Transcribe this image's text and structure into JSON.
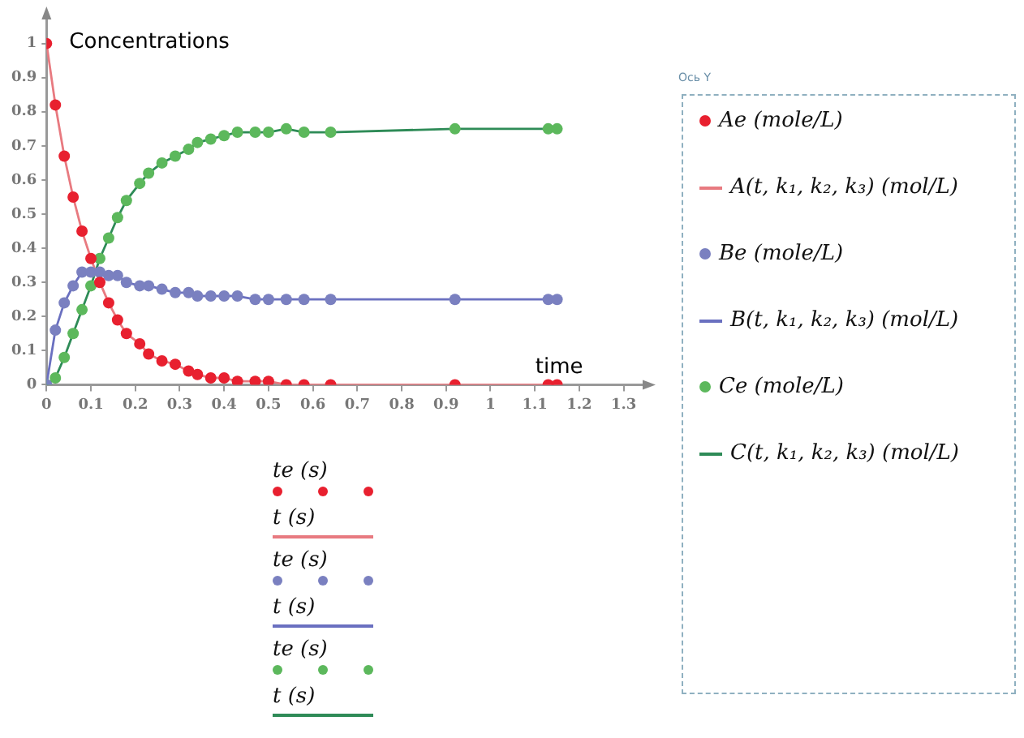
{
  "chart_data": {
    "type": "scatter",
    "ylabel": "Concentrations",
    "xlabel": "time",
    "x": [
      0,
      0.02,
      0.04,
      0.06,
      0.08,
      0.1,
      0.12,
      0.14,
      0.16,
      0.18,
      0.21,
      0.23,
      0.26,
      0.29,
      0.32,
      0.34,
      0.37,
      0.4,
      0.43,
      0.47,
      0.5,
      0.54,
      0.58,
      0.64,
      0.92,
      1.13,
      1.15
    ],
    "series": [
      {
        "name": "Ae (mole/L)",
        "color": "#e8202f",
        "values": [
          1,
          0.82,
          0.67,
          0.55,
          0.45,
          0.37,
          0.3,
          0.24,
          0.19,
          0.15,
          0.12,
          0.09,
          0.07,
          0.06,
          0.04,
          0.03,
          0.02,
          0.02,
          0.01,
          0.01,
          0.01,
          0,
          0,
          0,
          0,
          0,
          0
        ]
      },
      {
        "name": "A(t, k₁, k₂, k₃) (mol/L)",
        "type": "line",
        "color": "#e87a80",
        "values": [
          1,
          0.82,
          0.67,
          0.55,
          0.45,
          0.37,
          0.3,
          0.24,
          0.19,
          0.15,
          0.12,
          0.09,
          0.07,
          0.06,
          0.04,
          0.03,
          0.02,
          0.02,
          0.01,
          0.01,
          0.01,
          0,
          0,
          0,
          0,
          0,
          0
        ]
      },
      {
        "name": "Be (mole/L)",
        "color": "#7a80c0",
        "values": [
          0,
          0.16,
          0.24,
          0.29,
          0.33,
          0.33,
          0.33,
          0.32,
          0.32,
          0.3,
          0.29,
          0.29,
          0.28,
          0.27,
          0.27,
          0.26,
          0.26,
          0.26,
          0.26,
          0.25,
          0.25,
          0.25,
          0.25,
          0.25,
          0.25,
          0.25,
          0.25
        ]
      },
      {
        "name": "B(t, k₁, k₂, k₃) (mol/L)",
        "type": "line",
        "color": "#6a70c0",
        "values": [
          0,
          0.16,
          0.24,
          0.29,
          0.33,
          0.33,
          0.33,
          0.32,
          0.32,
          0.3,
          0.29,
          0.29,
          0.28,
          0.27,
          0.27,
          0.26,
          0.26,
          0.26,
          0.26,
          0.25,
          0.25,
          0.25,
          0.25,
          0.25,
          0.25,
          0.25,
          0.25
        ]
      },
      {
        "name": "Ce (mole/L)",
        "color": "#5cb85c",
        "values": [
          0,
          0.02,
          0.08,
          0.15,
          0.22,
          0.29,
          0.37,
          0.43,
          0.49,
          0.54,
          0.59,
          0.62,
          0.65,
          0.67,
          0.69,
          0.71,
          0.72,
          0.73,
          0.74,
          0.74,
          0.74,
          0.75,
          0.74,
          0.74,
          0.75,
          0.75,
          0.75
        ]
      },
      {
        "name": "C(t, k₁, k₂, k₃) (mol/L)",
        "type": "line",
        "color": "#2e8b57",
        "values": [
          0,
          0.02,
          0.08,
          0.15,
          0.22,
          0.29,
          0.37,
          0.43,
          0.49,
          0.54,
          0.59,
          0.62,
          0.65,
          0.67,
          0.69,
          0.71,
          0.72,
          0.73,
          0.74,
          0.74,
          0.74,
          0.75,
          0.74,
          0.74,
          0.75,
          0.75,
          0.75
        ]
      }
    ],
    "xlim": [
      0,
      1.35
    ],
    "ylim": [
      0,
      1.08
    ],
    "xticks": [
      0,
      0.1,
      0.2,
      0.3,
      0.4,
      0.5,
      0.6,
      0.7,
      0.8,
      0.9,
      1,
      1.1,
      1.2,
      1.3
    ],
    "yticks": [
      0,
      0.1,
      0.2,
      0.3,
      0.4,
      0.5,
      0.6,
      0.7,
      0.8,
      0.9,
      1
    ],
    "grid": false,
    "legend": "right",
    "annotations": [
      "Ось Y",
      "te (s)",
      "t (s)",
      "te (s)",
      "t (s)",
      "te (s)",
      "t (s)"
    ]
  }
}
